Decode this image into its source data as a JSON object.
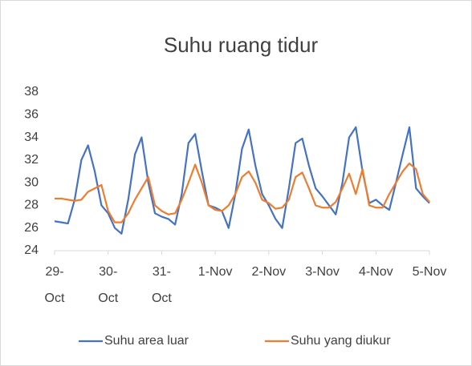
{
  "chart_data": {
    "type": "line",
    "title": "Suhu ruang tidur",
    "categories": [
      "29-Oct",
      null,
      null,
      null,
      null,
      null,
      null,
      null,
      "30-Oct",
      null,
      null,
      null,
      null,
      null,
      null,
      null,
      "31-Oct",
      null,
      null,
      null,
      null,
      null,
      null,
      null,
      "1-Nov",
      null,
      null,
      null,
      null,
      null,
      null,
      null,
      "2-Nov",
      null,
      null,
      null,
      null,
      null,
      null,
      null,
      "3-Nov",
      null,
      null,
      null,
      null,
      null,
      null,
      null,
      "4-Nov",
      null,
      null,
      null,
      null,
      null,
      null,
      null,
      "5-Nov"
    ],
    "series": [
      {
        "name": "Suhu area luar",
        "color": "#4472c4",
        "values": [
          26.6,
          26.5,
          26.4,
          28.5,
          32.0,
          33.3,
          31.0,
          28.0,
          27.3,
          26.0,
          25.5,
          28.5,
          32.5,
          34.0,
          30.0,
          27.3,
          27.0,
          26.8,
          26.3,
          29.0,
          33.5,
          34.3,
          31.0,
          28.0,
          27.8,
          27.5,
          26.0,
          29.0,
          33.0,
          34.7,
          31.5,
          29.0,
          28.0,
          26.8,
          26.0,
          29.5,
          33.5,
          33.9,
          31.5,
          29.5,
          28.8,
          28.0,
          27.2,
          30.0,
          34.0,
          34.9,
          31.0,
          28.2,
          28.5,
          28.0,
          27.6,
          30.0,
          32.5,
          34.9,
          29.5,
          28.8,
          28.2
        ]
      },
      {
        "name": "Suhu yang diukur",
        "color": "#ed7d31",
        "values": [
          28.6,
          28.6,
          28.5,
          28.4,
          28.5,
          29.2,
          29.5,
          29.8,
          27.5,
          26.5,
          26.5,
          27.3,
          28.5,
          29.5,
          30.5,
          28.0,
          27.5,
          27.2,
          27.3,
          28.5,
          30.0,
          31.6,
          30.0,
          28.0,
          27.6,
          27.5,
          28.0,
          29.0,
          30.5,
          31.0,
          30.0,
          28.5,
          28.2,
          27.7,
          27.8,
          28.5,
          30.5,
          30.9,
          29.5,
          28.0,
          27.8,
          27.8,
          28.3,
          29.5,
          30.8,
          29.0,
          31.2,
          28.0,
          27.8,
          27.8,
          29.0,
          30.0,
          31.0,
          31.7,
          31.2,
          29.0,
          28.3
        ]
      }
    ],
    "ylim": [
      24,
      38
    ],
    "yticks": [
      24,
      26,
      28,
      30,
      32,
      34,
      36,
      38
    ],
    "grid": false,
    "legend": "bottom"
  }
}
